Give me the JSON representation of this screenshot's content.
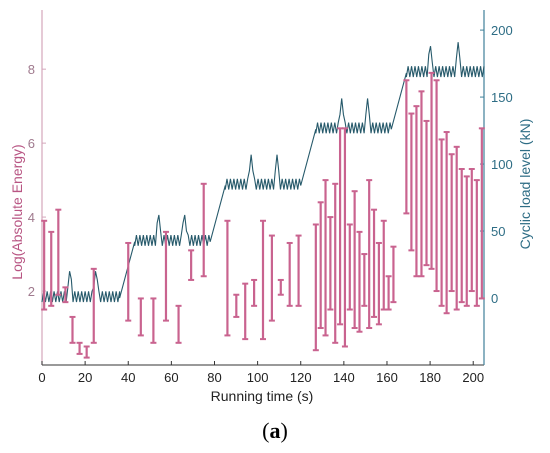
{
  "figure": {
    "panel_label_open": "(",
    "panel_label_letter": "a",
    "panel_label_close": ")"
  },
  "chart_data": {
    "type": "mixed",
    "xlabel": "Running time (s)",
    "ylabel_left": "Log(Absolute Energy)",
    "ylabel_right": "Cyclic load level (kN)",
    "xlim": [
      0,
      205
    ],
    "x_ticks": [
      0,
      20,
      40,
      60,
      80,
      100,
      120,
      140,
      160,
      180,
      200
    ],
    "left_ylim": [
      0,
      9.6
    ],
    "left_ticks": [
      2,
      4,
      6,
      8
    ],
    "right_ylim": [
      -50,
      215
    ],
    "right_ticks": [
      0,
      50,
      100,
      150,
      200
    ],
    "grid": false,
    "colors": {
      "energy": "#c9638f",
      "load": "#275a6b",
      "axis": "#333333",
      "left_axis": "#d4a6bb",
      "right_axis": "#3f8099"
    },
    "load_series": {
      "name": "Cyclic load level (kN)",
      "stages": [
        {
          "t_start": 0,
          "t_end": 36,
          "level": 0,
          "spikes": [
            13,
            25
          ]
        },
        {
          "t_start": 43,
          "t_end": 78,
          "level": 42,
          "spikes": [
            54,
            66
          ]
        },
        {
          "t_start": 85,
          "t_end": 120,
          "level": 84,
          "spikes": [
            97,
            109
          ]
        },
        {
          "t_start": 127,
          "t_end": 162,
          "level": 126,
          "spikes": [
            139,
            151
          ]
        },
        {
          "t_start": 169,
          "t_end": 205,
          "level": 168,
          "spikes": [
            180,
            193
          ]
        }
      ],
      "ripple_amplitude": 5,
      "ripple_period": 1.6,
      "spike_height": 18
    },
    "energy_series": {
      "name": "Log(Absolute Energy)",
      "ranges": [
        [
          1.5,
          3.9
        ],
        [
          1.6,
          3.6
        ],
        [
          1.9,
          4.2
        ],
        [
          1.7,
          2.1
        ],
        [
          0.6,
          1.3
        ],
        [
          0.3,
          0.6
        ],
        [
          0.2,
          0.5
        ],
        [
          0.6,
          2.6
        ],
        [
          1.2,
          3.3
        ],
        [
          0.8,
          1.8
        ],
        [
          0.6,
          1.8
        ],
        [
          1.2,
          3.6
        ],
        [
          0.6,
          1.6
        ],
        [
          2.3,
          3.1
        ],
        [
          2.4,
          4.9
        ],
        [
          0.8,
          3.9
        ],
        [
          1.3,
          1.9
        ],
        [
          0.7,
          2.2
        ],
        [
          1.6,
          2.3
        ],
        [
          0.7,
          3.9
        ],
        [
          1.2,
          3.5
        ],
        [
          1.9,
          2.3
        ],
        [
          1.6,
          3.3
        ],
        [
          1.6,
          3.5
        ],
        [
          0.4,
          3.8
        ],
        [
          1.0,
          4.4
        ],
        [
          0.8,
          5.0
        ],
        [
          1.5,
          4.0
        ],
        [
          0.6,
          4.9
        ],
        [
          1.1,
          6.4
        ],
        [
          0.5,
          6.4
        ],
        [
          1.5,
          3.8
        ],
        [
          1.0,
          4.7
        ],
        [
          0.9,
          3.6
        ],
        [
          1.6,
          3.0
        ],
        [
          1.0,
          5.0
        ],
        [
          1.3,
          4.2
        ],
        [
          1.1,
          3.3
        ],
        [
          1.5,
          3.9
        ],
        [
          1.5,
          2.4
        ],
        [
          1.7,
          3.2
        ],
        [
          4.1,
          7.7
        ],
        [
          3.1,
          6.8
        ],
        [
          2.4,
          7.0
        ],
        [
          2.4,
          7.4
        ],
        [
          2.7,
          6.6
        ],
        [
          2.6,
          7.9
        ],
        [
          2.0,
          7.7
        ],
        [
          1.6,
          6.1
        ],
        [
          1.4,
          6.3
        ],
        [
          2.0,
          5.7
        ],
        [
          1.5,
          5.9
        ],
        [
          1.7,
          5.3
        ],
        [
          1.6,
          5.1
        ],
        [
          2.0,
          5.3
        ],
        [
          1.6,
          5.0
        ],
        [
          1.8,
          6.4
        ]
      ]
    }
  }
}
